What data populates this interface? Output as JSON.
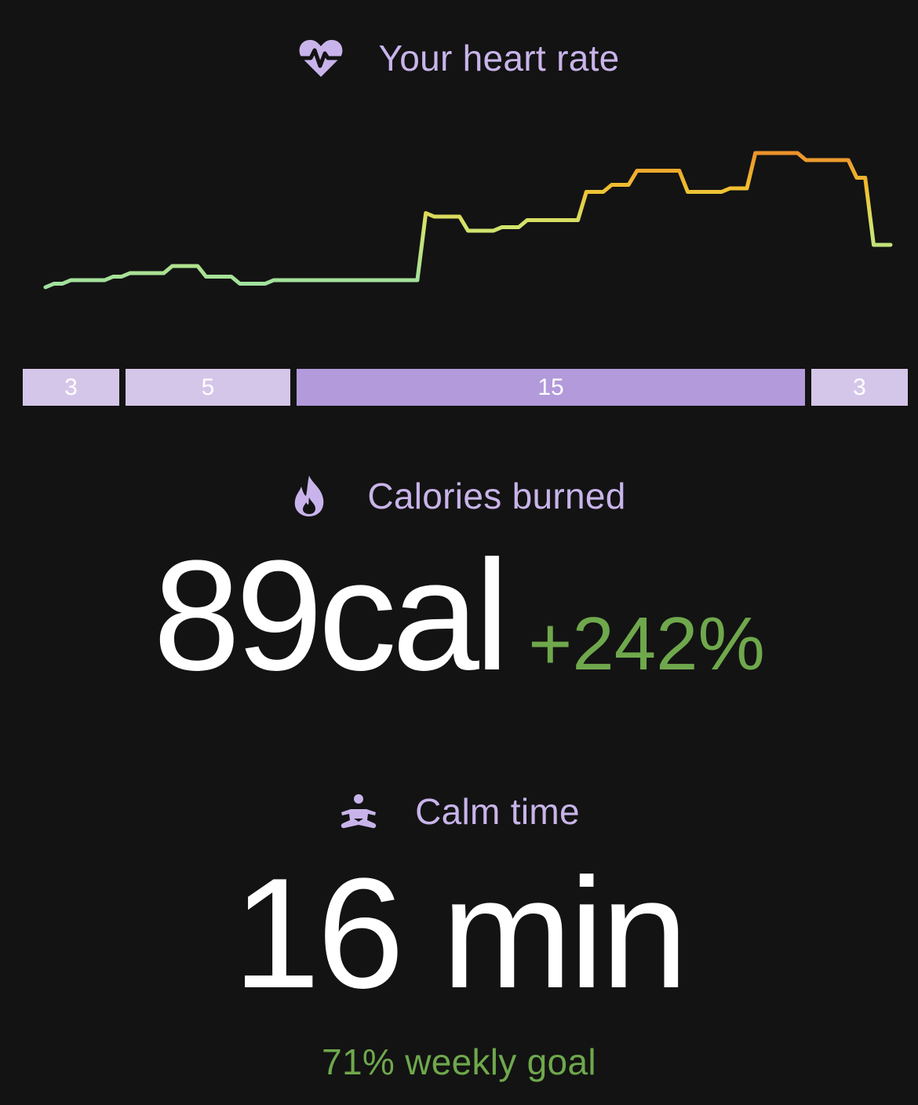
{
  "heart_rate": {
    "title": "Your heart rate",
    "icon": "heart-pulse-icon",
    "chart_data": {
      "type": "line",
      "x": [
        0,
        1,
        2,
        3,
        4,
        5,
        6,
        7,
        8,
        9,
        10,
        11,
        12,
        13,
        14,
        15,
        16,
        17,
        18,
        19,
        20,
        21,
        22,
        23,
        24,
        25,
        26,
        27,
        28,
        29,
        30,
        31,
        32,
        33,
        34,
        35,
        36,
        37,
        38,
        39,
        40,
        41,
        42,
        43,
        44,
        45,
        46,
        47,
        48,
        49,
        50,
        51,
        52,
        53,
        54,
        55,
        56,
        57,
        58,
        59,
        60,
        61,
        62,
        63,
        64,
        65,
        66,
        67,
        68,
        69,
        70,
        71,
        72,
        73,
        74,
        75,
        76,
        77,
        78,
        79,
        80,
        81,
        82,
        83,
        84,
        85,
        86,
        87,
        88,
        89,
        90,
        91,
        92,
        93,
        94,
        95,
        96,
        97,
        98,
        99,
        100
      ],
      "values": [
        92,
        93,
        93,
        94,
        94,
        94,
        94,
        94,
        95,
        95,
        96,
        96,
        96,
        96,
        96,
        98,
        98,
        98,
        98,
        95,
        95,
        95,
        95,
        93,
        93,
        93,
        93,
        94,
        94,
        94,
        94,
        94,
        94,
        94,
        94,
        94,
        94,
        94,
        94,
        94,
        94,
        94,
        94,
        94,
        94,
        113,
        112,
        112,
        112,
        112,
        108,
        108,
        108,
        108,
        109,
        109,
        109,
        111,
        111,
        111,
        111,
        111,
        111,
        111,
        119,
        119,
        119,
        121,
        121,
        121,
        125,
        125,
        125,
        125,
        125,
        125,
        119,
        119,
        119,
        119,
        119,
        120,
        120,
        120,
        130,
        130,
        130,
        130,
        130,
        130,
        128,
        128,
        128,
        128,
        128,
        128,
        123,
        123,
        104,
        104,
        104
      ],
      "ylim": [
        80,
        140
      ],
      "zone_colors": [
        "#8de0b0",
        "#d4e36a",
        "#f0c030",
        "#e8702a"
      ]
    },
    "zones": [
      {
        "value": "3"
      },
      {
        "value": "5"
      },
      {
        "value": "15"
      },
      {
        "value": "3"
      }
    ]
  },
  "calories": {
    "title": "Calories burned",
    "icon": "flame-icon",
    "value": "89cal",
    "delta": "+242%"
  },
  "calm": {
    "title": "Calm time",
    "icon": "meditation-icon",
    "value": "16 min",
    "goal": "71% weekly goal"
  },
  "colors": {
    "accent": "#c8b4ea",
    "positive": "#6fa84c",
    "zone_light": "#d4c6e8",
    "zone_strong": "#b29adb"
  }
}
